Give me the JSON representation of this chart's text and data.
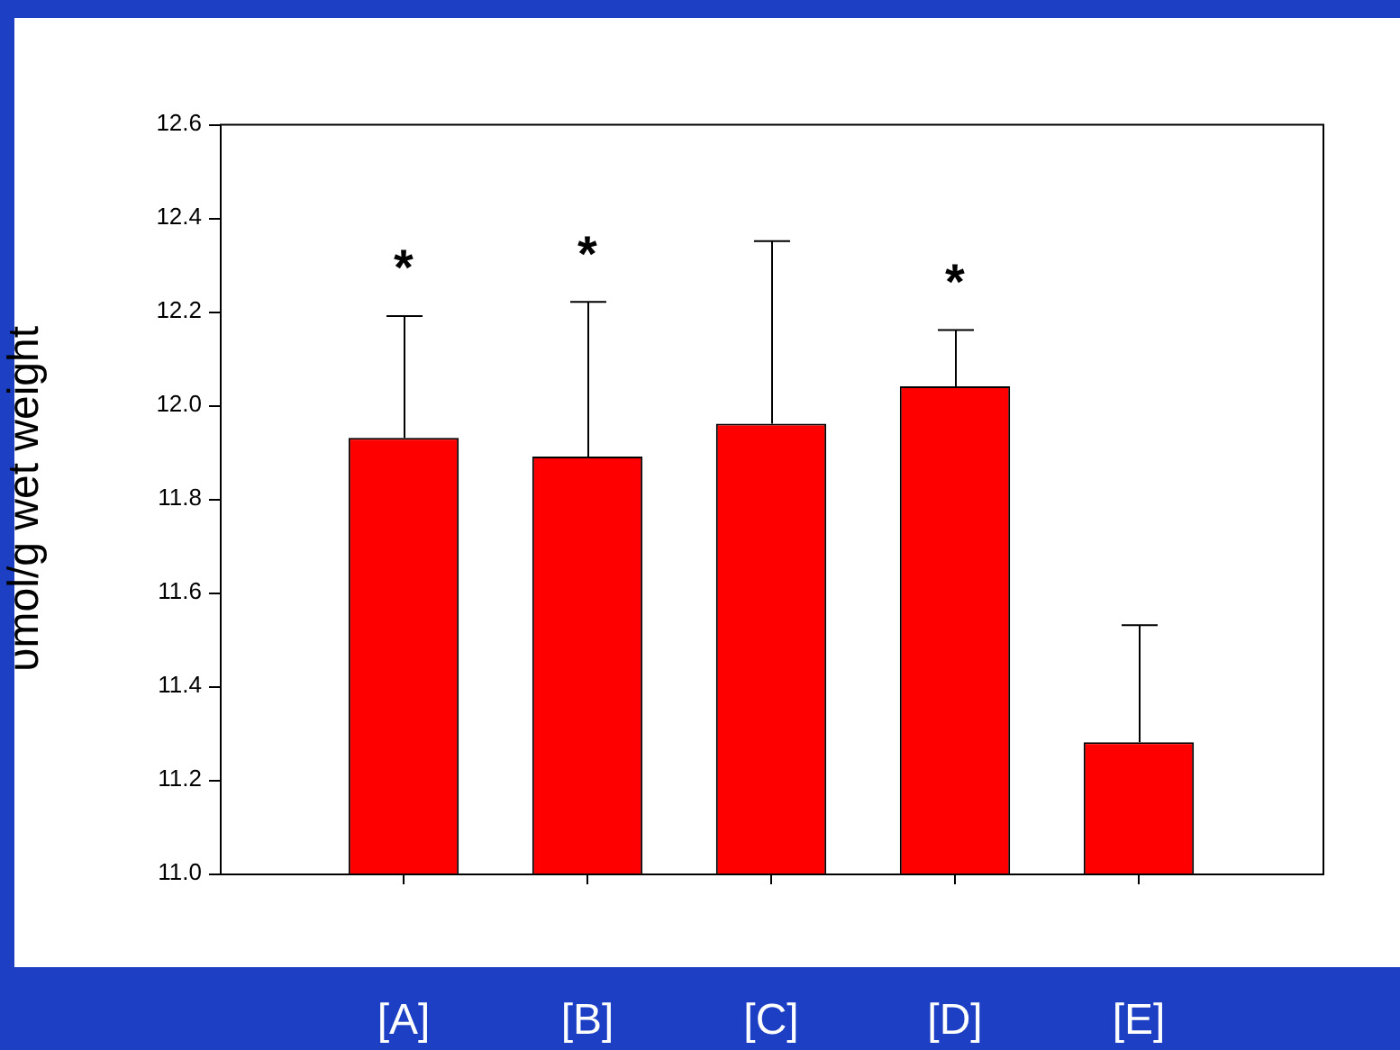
{
  "chart_data": {
    "type": "bar",
    "ylabel": "υmol/g wet weight",
    "categories": [
      "[A]",
      "[B]",
      "[C]",
      "[D]",
      "[E]"
    ],
    "values": [
      11.93,
      11.89,
      11.96,
      12.04,
      11.28
    ],
    "errors": [
      [
        11.93,
        12.19
      ],
      [
        11.89,
        12.22
      ],
      [
        11.96,
        12.35
      ],
      [
        12.04,
        12.16
      ],
      [
        11.28,
        11.53
      ]
    ],
    "color": "#ff0000",
    "ylim": [
      11.0,
      12.6
    ],
    "yticks": [
      {
        "value": 11.0,
        "label": "11.0"
      },
      {
        "value": 11.2,
        "label": "11.2"
      },
      {
        "value": 11.4,
        "label": "11.4"
      },
      {
        "value": 11.6,
        "label": "11.6"
      },
      {
        "value": 11.8,
        "label": "11.8"
      },
      {
        "value": 12.0,
        "label": "12.0"
      },
      {
        "value": 12.2,
        "label": "12.2"
      },
      {
        "value": 12.4,
        "label": "12.4"
      },
      {
        "value": 12.6,
        "label": "12.6"
      }
    ],
    "annotations": [
      {
        "text": "*",
        "x": "[A]",
        "y": 12.19
      },
      {
        "text": "*",
        "x": "[B]",
        "y": 12.22
      },
      {
        "text": "*",
        "x": "[D]",
        "y": 12.16
      }
    ],
    "grid": false,
    "legend": false
  }
}
